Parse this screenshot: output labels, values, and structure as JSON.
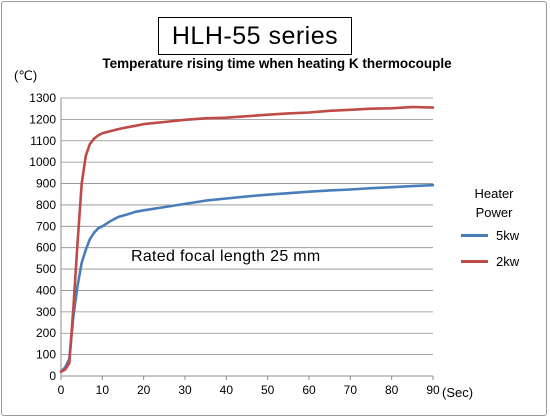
{
  "header": {
    "series_title": "HLH-55 series"
  },
  "chart_data": {
    "type": "line",
    "title": "Temperature rising time when heating K thermocouple",
    "ylabel": "(℃)",
    "xlabel": "(Sec)",
    "annotation": "Rated focal length 25 mm",
    "legend_title": "Heater Power",
    "legend_position": "right",
    "grid": true,
    "xlim": [
      0,
      90
    ],
    "ylim": [
      0,
      1300
    ],
    "xticks": [
      0,
      10,
      20,
      30,
      40,
      50,
      60,
      70,
      80,
      90
    ],
    "yticks": [
      0,
      100,
      200,
      300,
      400,
      500,
      600,
      700,
      800,
      900,
      1000,
      1100,
      1200,
      1300
    ],
    "series": [
      {
        "name": "5kw",
        "color": "#4a7ebb",
        "x": [
          0,
          1,
          2,
          3,
          4,
          5,
          6,
          7,
          8,
          9,
          10,
          12,
          14,
          16,
          18,
          20,
          25,
          30,
          35,
          40,
          45,
          50,
          55,
          60,
          65,
          70,
          75,
          80,
          85,
          90
        ],
        "y": [
          20,
          40,
          80,
          280,
          420,
          530,
          590,
          640,
          670,
          690,
          700,
          725,
          745,
          755,
          768,
          775,
          790,
          805,
          820,
          830,
          840,
          848,
          855,
          862,
          868,
          872,
          878,
          883,
          888,
          892
        ]
      },
      {
        "name": "2kw",
        "color": "#be4b48",
        "x": [
          0,
          1,
          2,
          3,
          4,
          5,
          6,
          7,
          8,
          9,
          10,
          12,
          14,
          16,
          18,
          20,
          25,
          30,
          35,
          40,
          45,
          50,
          55,
          60,
          65,
          70,
          75,
          80,
          85,
          90
        ],
        "y": [
          20,
          30,
          60,
          320,
          620,
          900,
          1030,
          1085,
          1110,
          1125,
          1135,
          1145,
          1155,
          1163,
          1170,
          1178,
          1188,
          1198,
          1205,
          1208,
          1215,
          1222,
          1228,
          1232,
          1240,
          1245,
          1250,
          1252,
          1258,
          1255
        ]
      }
    ]
  }
}
